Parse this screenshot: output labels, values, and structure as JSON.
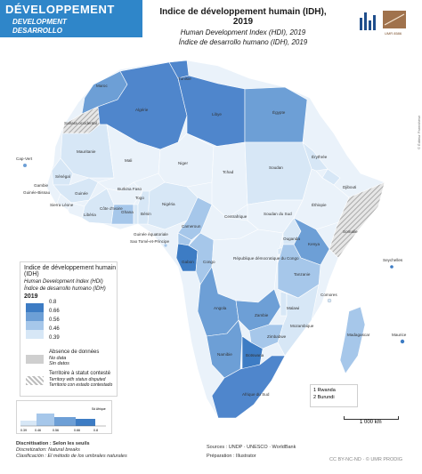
{
  "header": {
    "banner_fr": "DÉVELOPPEMENT",
    "banner_en": "DEVELOPMENT",
    "banner_es": "DESARROLLO",
    "title_fr": "Indice de développement humain (IDH), 2019",
    "title_en": "Human Development Index (HDI), 2019",
    "title_es": "Índice de desarrollo humano (IDH), 2019",
    "publisher": "UMR 8586",
    "side_label": "© Éditeur Parenthèse"
  },
  "legend": {
    "title_fr": "Indice de développement humain",
    "title_fr2": "(IDH)",
    "title_en": "Human Development Index (HDI)",
    "title_es": "Índice de desarrollo humano (IDH)",
    "year": "2019",
    "breaks": [
      "0.8",
      "0.66",
      "0.56",
      "0.46",
      "0.39"
    ],
    "class_colors": [
      "#3d7cc4",
      "#6d9fd6",
      "#a6c7ea",
      "#d7e7f6"
    ],
    "nodata_fr": "Absence de données",
    "nodata_en": "No data",
    "nodata_es": "Sin datos",
    "disputed_fr": "Territoire à statut contesté",
    "disputed_en": "Territory with status disputed",
    "disputed_es": "Territorio con estado contestado"
  },
  "histogram": {
    "ticks": [
      "0.39",
      "0.46",
      "0.56",
      "0.66",
      "0.8"
    ],
    "note": "Sd Afrique"
  },
  "inset": {
    "items": [
      "1 Rwanda",
      "2 Burundi"
    ]
  },
  "scale": {
    "label": "1 000 km"
  },
  "footer": {
    "discretisation": "Discrétisation : Selon les seuils",
    "discretization_en": "Discretization: Natural breaks",
    "discretizacion_es": "Clasificación : El método de los umbrales naturales",
    "sources": "Sources : UNDP · UNESCO · WorldBank",
    "preparation": "Préparation : Illustrator",
    "license": "CC BY-NC-ND · © UMR PRODIG"
  },
  "countries": {
    "morocco": "Maroc",
    "algeria": "Algérie",
    "tunisia": "Tunisie",
    "libya": "Libye",
    "egypt": "Égypte",
    "western_sahara": "Sahara occidental",
    "mauritania": "Mauritanie",
    "mali": "Mali",
    "niger": "Niger",
    "chad": "Tchad",
    "sudan": "Soudan",
    "eritrea": "Érythrée",
    "djibouti": "Djibouti",
    "ethiopia": "Éthiopie",
    "somalia": "Somalie",
    "south_sudan": "Soudan du Sud",
    "car": "Centrafrique",
    "cameroon": "Cameroun",
    "nigeria": "Nigéria",
    "senegal": "Sénégal",
    "gambia": "Gambie",
    "guinea_bissau": "Guinée-Bissau",
    "guinea": "Guinée",
    "sierra_leone": "Sierra Léone",
    "liberia": "Libéria",
    "ivory_coast": "Côte d'Ivoire",
    "burkina": "Burkina Faso",
    "ghana": "Ghana",
    "togo": "Togo",
    "benin": "Bénin",
    "eq_guinea": "Guinée équatoriale",
    "sao_tome": "Sao Tomé-et-Principe",
    "gabon": "Gabon",
    "congo": "Congo",
    "drc": "République démocratique du Congo",
    "uganda": "Ouganda",
    "kenya": "Kenya",
    "tanzania": "Tanzanie",
    "angola": "Angola",
    "zambia": "Zambie",
    "malawi": "Malawi",
    "mozambique": "Mozambique",
    "zimbabwe": "Zimbabwe",
    "namibia": "Namibie",
    "botswana": "Botswana",
    "south_africa": "Afrique du Sud",
    "madagascar": "Madagascar",
    "comoros": "Comores",
    "mauritius": "Maurice",
    "seychelles": "Seychelles",
    "cape_verde": "Cap-Vert"
  }
}
